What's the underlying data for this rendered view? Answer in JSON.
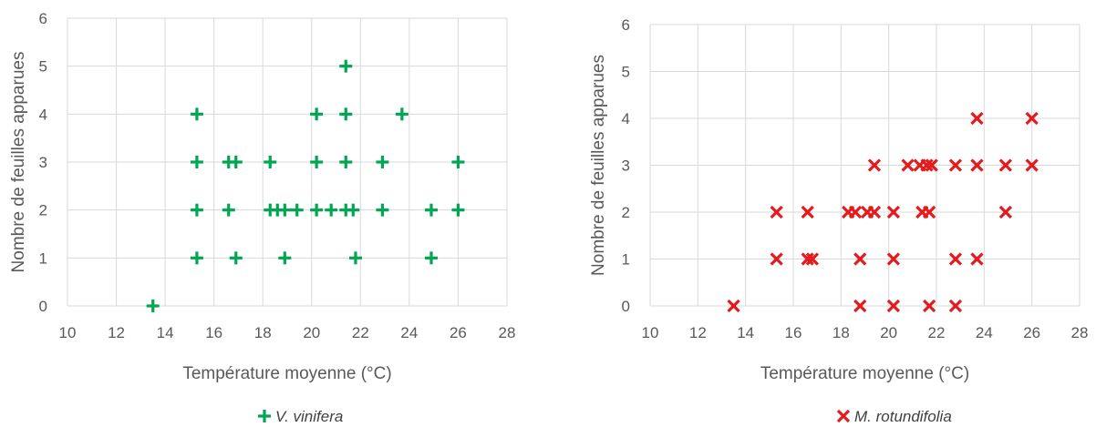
{
  "chart_data": [
    {
      "type": "scatter",
      "xlabel": "Température moyenne (°C)",
      "ylabel": "Nombre de feuilles apparues",
      "xlim": [
        10,
        28
      ],
      "ylim": [
        0,
        6
      ],
      "x_ticks": [
        "10",
        "12",
        "14",
        "16",
        "18",
        "20",
        "22",
        "24",
        "26",
        "28"
      ],
      "y_ticks": [
        "0",
        "1",
        "2",
        "3",
        "4",
        "5",
        "6"
      ],
      "grid": true,
      "legend_position": "bottom",
      "series": [
        {
          "name": "V. vinifera",
          "marker": "plus",
          "color": "#00a651",
          "points": [
            [
              13.5,
              0
            ],
            [
              15.3,
              4
            ],
            [
              15.3,
              3
            ],
            [
              15.3,
              2
            ],
            [
              15.3,
              1
            ],
            [
              16.6,
              3
            ],
            [
              16.6,
              2
            ],
            [
              16.9,
              3
            ],
            [
              16.9,
              1
            ],
            [
              18.3,
              3
            ],
            [
              18.3,
              2
            ],
            [
              18.6,
              2
            ],
            [
              18.9,
              2
            ],
            [
              18.9,
              1
            ],
            [
              19.4,
              2
            ],
            [
              20.2,
              4
            ],
            [
              20.2,
              3
            ],
            [
              20.2,
              2
            ],
            [
              20.8,
              2
            ],
            [
              21.4,
              5
            ],
            [
              21.4,
              4
            ],
            [
              21.4,
              3
            ],
            [
              21.4,
              2
            ],
            [
              21.7,
              2
            ],
            [
              21.8,
              1
            ],
            [
              22.9,
              3
            ],
            [
              22.9,
              2
            ],
            [
              23.7,
              4
            ],
            [
              24.9,
              2
            ],
            [
              24.9,
              1
            ],
            [
              26.0,
              3
            ],
            [
              26.0,
              2
            ]
          ]
        },
        {
          "name": "M. rotundifolia",
          "marker": "x",
          "color": "#e41a1c",
          "points": [
            [
              13.5,
              0
            ],
            [
              15.3,
              2
            ],
            [
              15.3,
              1
            ],
            [
              16.6,
              2
            ],
            [
              16.6,
              1
            ],
            [
              16.8,
              1
            ],
            [
              18.3,
              2
            ],
            [
              18.6,
              2
            ],
            [
              18.8,
              1
            ],
            [
              18.8,
              0
            ],
            [
              19.1,
              2
            ],
            [
              19.4,
              3
            ],
            [
              19.4,
              2
            ],
            [
              20.2,
              2
            ],
            [
              20.2,
              1
            ],
            [
              20.2,
              0
            ],
            [
              20.8,
              3
            ],
            [
              21.3,
              3
            ],
            [
              21.4,
              2
            ],
            [
              21.6,
              3
            ],
            [
              21.7,
              2
            ],
            [
              21.8,
              3
            ],
            [
              21.7,
              0
            ],
            [
              22.8,
              3
            ],
            [
              22.8,
              1
            ],
            [
              22.8,
              0
            ],
            [
              23.7,
              4
            ],
            [
              23.7,
              3
            ],
            [
              23.7,
              1
            ],
            [
              24.9,
              3
            ],
            [
              24.9,
              2
            ],
            [
              26.0,
              4
            ],
            [
              26.0,
              3
            ]
          ]
        }
      ]
    }
  ]
}
